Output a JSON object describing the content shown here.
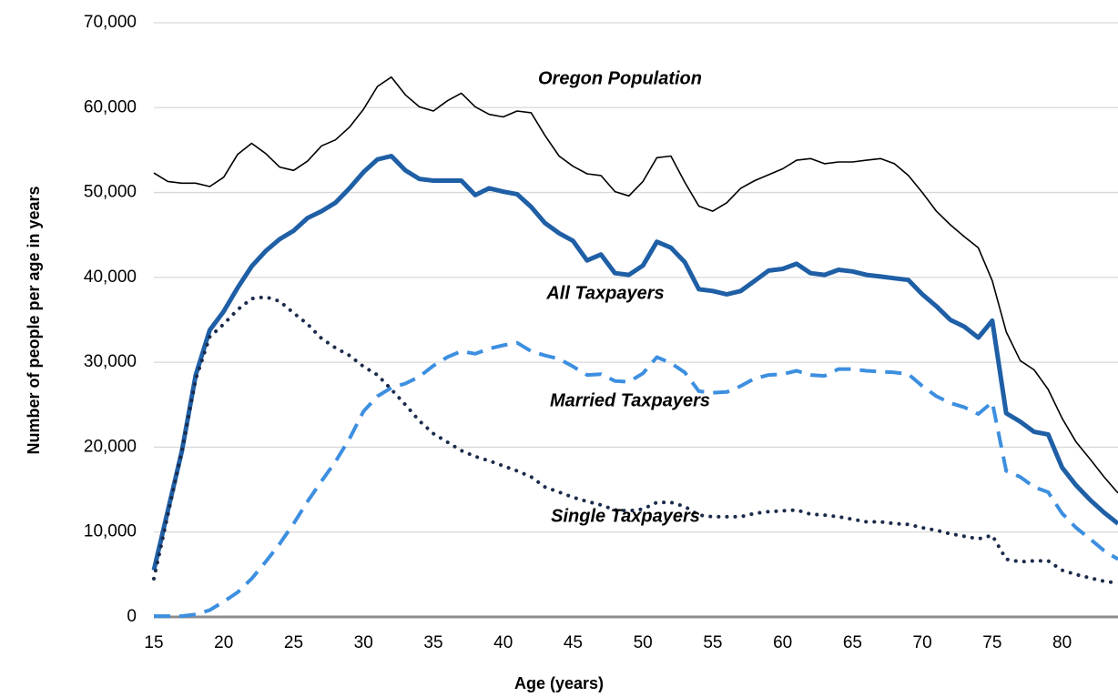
{
  "chart_data": {
    "type": "line",
    "xlabel": "Age (years)",
    "ylabel": "Number of people per age in years",
    "x": [
      15,
      16,
      17,
      18,
      19,
      20,
      21,
      22,
      23,
      24,
      25,
      26,
      27,
      28,
      29,
      30,
      31,
      32,
      33,
      34,
      35,
      36,
      37,
      38,
      39,
      40,
      41,
      42,
      43,
      44,
      45,
      46,
      47,
      48,
      49,
      50,
      51,
      52,
      53,
      54,
      55,
      56,
      57,
      58,
      59,
      60,
      61,
      62,
      63,
      64,
      65,
      66,
      67,
      68,
      69,
      70,
      71,
      72,
      73,
      74,
      75,
      76,
      77,
      78,
      79,
      80,
      81,
      82,
      83,
      84
    ],
    "xlim": [
      15,
      84
    ],
    "xticks": [
      15,
      20,
      25,
      30,
      35,
      40,
      45,
      50,
      55,
      60,
      65,
      70,
      75,
      80
    ],
    "ylim": [
      0,
      70000
    ],
    "yticks": [
      {
        "value": 0,
        "label": "0"
      },
      {
        "value": 10000,
        "label": "10,000"
      },
      {
        "value": 20000,
        "label": "20,000"
      },
      {
        "value": 30000,
        "label": "30,000"
      },
      {
        "value": 40000,
        "label": "40,000"
      },
      {
        "value": 50000,
        "label": "50,000"
      },
      {
        "value": 60000,
        "label": "60,000"
      },
      {
        "value": 70000,
        "label": "70,000"
      }
    ],
    "grid": true,
    "series": [
      {
        "name": "Oregon Population",
        "color": "#000000",
        "style": "thin",
        "values": [
          52300,
          51300,
          51100,
          51100,
          50700,
          51800,
          54500,
          55800,
          54600,
          53000,
          52600,
          53700,
          55500,
          56200,
          57700,
          59800,
          62500,
          63600,
          61500,
          60100,
          59600,
          60800,
          61700,
          60100,
          59200,
          58900,
          59600,
          59400,
          56700,
          54300,
          53100,
          52200,
          52000,
          50100,
          49600,
          51300,
          54100,
          54300,
          51200,
          48400,
          47800,
          48800,
          50500,
          51400,
          52100,
          52800,
          53800,
          54000,
          53400,
          53600,
          53600,
          53800,
          54000,
          53400,
          52000,
          50000,
          47800,
          46200,
          44800,
          43500,
          39600,
          33600,
          30200,
          29100,
          26800,
          23400,
          20600,
          18600,
          16500,
          14600
        ]
      },
      {
        "name": "All Taxpayers",
        "color": "#1f5fa6",
        "style": "thick",
        "values": [
          5500,
          12500,
          19500,
          28500,
          33800,
          36000,
          38800,
          41300,
          43100,
          44500,
          45500,
          47000,
          47800,
          48800,
          50500,
          52400,
          53900,
          54300,
          52600,
          51600,
          51400,
          51400,
          51400,
          49700,
          50500,
          50100,
          49800,
          48300,
          46400,
          45200,
          44300,
          42000,
          42700,
          40500,
          40300,
          41400,
          44200,
          43500,
          41800,
          38600,
          38400,
          38000,
          38400,
          39600,
          40800,
          41000,
          41600,
          40500,
          40300,
          40900,
          40700,
          40300,
          40100,
          39900,
          39700,
          38000,
          36600,
          35000,
          34200,
          32900,
          34900,
          24000,
          23000,
          21800,
          21500,
          17600,
          15500,
          13800,
          12300,
          11000
        ]
      },
      {
        "name": "Married Taxpayers",
        "color": "#3d8fe0",
        "style": "dashed",
        "values": [
          100,
          100,
          100,
          300,
          800,
          1800,
          2900,
          4500,
          6500,
          8600,
          11000,
          13600,
          16000,
          18300,
          21000,
          24200,
          26000,
          27000,
          27500,
          28300,
          29600,
          30600,
          31300,
          31000,
          31600,
          32000,
          32300,
          31300,
          30800,
          30400,
          29500,
          28500,
          28600,
          27800,
          27700,
          28700,
          30600,
          29900,
          28800,
          26600,
          26400,
          26500,
          27200,
          28100,
          28500,
          28600,
          29000,
          28500,
          28400,
          29200,
          29200,
          29000,
          28900,
          28800,
          28600,
          27200,
          26000,
          25200,
          24700,
          23900,
          25300,
          17200,
          16500,
          15300,
          14700,
          12200,
          10500,
          9200,
          7800,
          6800
        ]
      },
      {
        "name": "Single Taxpayers",
        "color": "#1b2b4b",
        "style": "dotted",
        "values": [
          4500,
          12000,
          19500,
          28000,
          33000,
          34500,
          36200,
          37500,
          37700,
          37200,
          35800,
          34500,
          32800,
          31700,
          30800,
          29500,
          28500,
          26800,
          25000,
          23100,
          21600,
          20600,
          19600,
          18900,
          18400,
          17800,
          17200,
          16500,
          15300,
          14700,
          14100,
          13600,
          13200,
          12600,
          12500,
          12700,
          13500,
          13500,
          13000,
          12000,
          11800,
          11800,
          11800,
          12200,
          12400,
          12500,
          12600,
          12100,
          12000,
          11800,
          11500,
          11200,
          11200,
          11000,
          10900,
          10500,
          10200,
          9800,
          9500,
          9200,
          9600,
          6800,
          6500,
          6600,
          6600,
          5500,
          5000,
          4600,
          4200,
          4000
        ]
      }
    ]
  }
}
